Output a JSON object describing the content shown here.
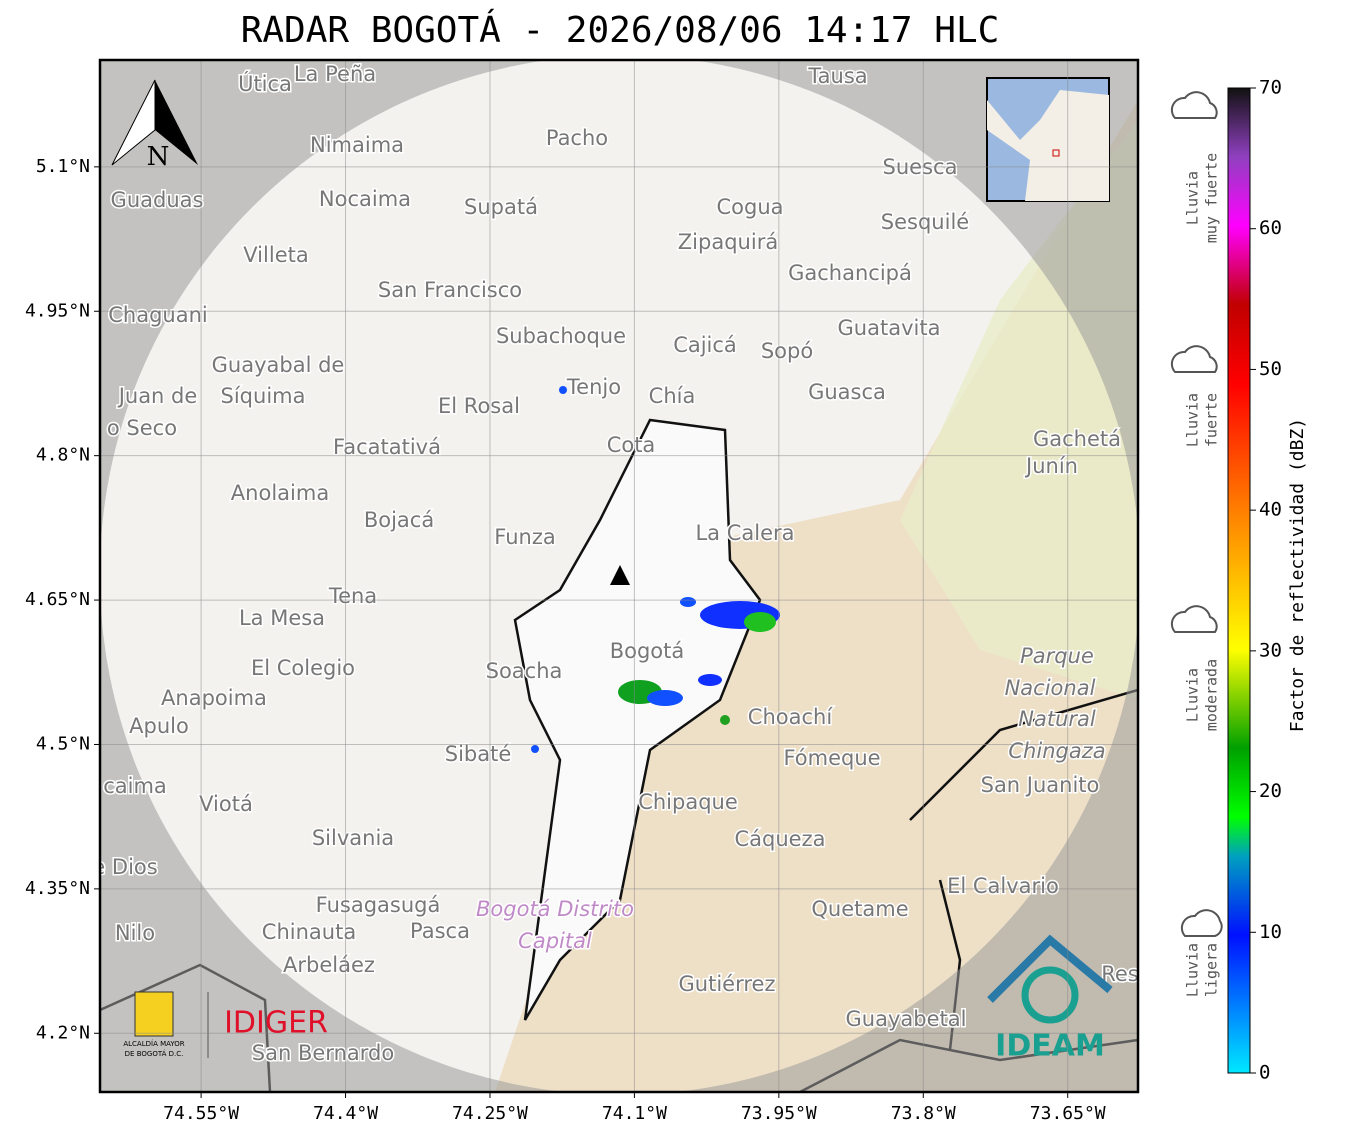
{
  "title": "RADAR BOGOTÁ - 2026/08/06 14:17 HLC",
  "map": {
    "xlim": [
      -74.655,
      -73.577
    ],
    "ylim": [
      4.139,
      5.211
    ],
    "xticks": [
      {
        "value": -74.55,
        "label": "74.55°W"
      },
      {
        "value": -74.4,
        "label": "74.4°W"
      },
      {
        "value": -74.25,
        "label": "74.25°W"
      },
      {
        "value": -74.1,
        "label": "74.1°W"
      },
      {
        "value": -73.95,
        "label": "73.95°W"
      },
      {
        "value": -73.8,
        "label": "73.8°W"
      },
      {
        "value": -73.65,
        "label": "73.65°W"
      }
    ],
    "yticks": [
      {
        "value": 5.1,
        "label": "5.1°N"
      },
      {
        "value": 4.95,
        "label": "4.95°N"
      },
      {
        "value": 4.8,
        "label": "4.8°N"
      },
      {
        "value": 4.65,
        "label": "4.65°N"
      },
      {
        "value": 4.5,
        "label": "4.5°N"
      },
      {
        "value": 4.35,
        "label": "4.35°N"
      },
      {
        "value": 4.2,
        "label": "4.2°N"
      }
    ],
    "compass": "N",
    "places": [
      "Útica",
      "La Peña",
      "Tausa",
      "Pacho",
      "Nimaima",
      "Suesca",
      "Guaduas",
      "Nocaima",
      "Supatá",
      "Cogua",
      "Sesquilé",
      "Zipaquirá",
      "Villeta",
      "Gachancipá",
      "San Francisco",
      "Chaguani",
      "Guatavita",
      "Subachoque",
      "Cajicá",
      "Sopó",
      "Guayabal de",
      "Síquima",
      "Juan de",
      "o Seco",
      "Tenjo",
      "Chía",
      "Guasca",
      "El Rosal",
      "Facatativá",
      "Cota",
      "Gachetá",
      "Junín",
      "Anolaima",
      "Bojacá",
      "Funza",
      "La Calera",
      "Tena",
      "La Mesa",
      "Bogotá",
      "Parque",
      "Nacional",
      "Natural",
      "Chingaza",
      "El Colegio",
      "Soacha",
      "Anapoima",
      "Apulo",
      "Choachí",
      "Sibaté",
      "Fómeque",
      "San Juanito",
      "caima",
      "Viotá",
      "Chipaque",
      "Silvania",
      "Cáqueza",
      "e Dios",
      "El Calvario",
      "Fusagasugá",
      "Bogotá Distrito",
      "Capital",
      "Quetame",
      "Chinauta",
      "Pasca",
      "Nilo",
      "Arbeláez",
      "Res",
      "Gutiérrez",
      "Guayabetal",
      "San Bernardo"
    ]
  },
  "colorbar": {
    "label": "Factor de reflectividad (dBZ)",
    "lim": [
      0,
      70
    ],
    "ticks": [
      0,
      10,
      20,
      30,
      40,
      50,
      60,
      70
    ]
  },
  "legend": [
    [
      "Lluvia",
      "muy fuerte"
    ],
    [
      "Lluvia",
      "fuerte"
    ],
    [
      "Lluvia",
      "moderada"
    ],
    [
      "Lluvia",
      "ligera"
    ]
  ],
  "logos": {
    "alcaldia": [
      "ALCALDÍA MAYOR",
      "DE BOGOTÁ D.C."
    ],
    "idiger": "IDIGER",
    "ideam": "IDEAM"
  }
}
